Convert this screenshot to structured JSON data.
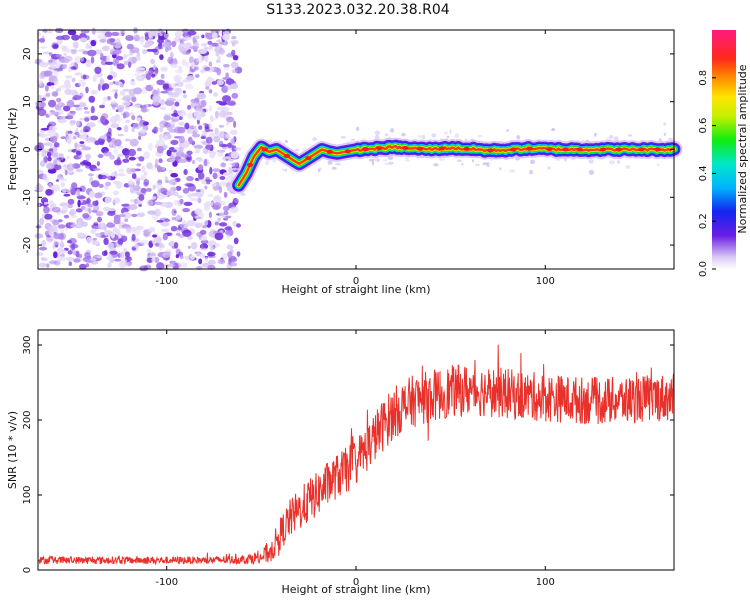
{
  "title": "S133.2023.032.20.38.R04",
  "chart_data": [
    {
      "type": "heatmap",
      "xlabel": "Height of straight line (km)",
      "ylabel": "Frequency (Hz)",
      "xlim": [
        -168,
        168
      ],
      "ylim": [
        -25,
        25
      ],
      "xticks": [
        -100,
        0,
        100
      ],
      "yticks": [
        -20,
        -10,
        0,
        10,
        20
      ],
      "noise_region_x": [
        -168,
        -62
      ],
      "signal_onset_x": -62,
      "ridge": {
        "x": [
          -62,
          -58,
          -54,
          -50,
          -46,
          -42,
          -38,
          -34,
          -30,
          -26,
          -22,
          -18,
          -14,
          -10,
          -6,
          -2,
          2,
          10,
          20,
          30,
          40,
          50,
          60,
          70,
          80,
          90,
          100,
          110,
          120,
          130,
          140,
          150,
          160,
          168
        ],
        "y": [
          -7.5,
          -5,
          -1.5,
          0.5,
          -0.5,
          0,
          -1,
          -2,
          -3,
          -2,
          -1,
          0,
          -0.5,
          -0.8,
          -0.5,
          -0.2,
          0,
          0.2,
          0.5,
          0.2,
          0.1,
          0.3,
          0.1,
          -0.2,
          -0.1,
          0.2,
          0.1,
          0,
          0,
          0,
          0,
          0,
          0,
          0
        ]
      },
      "colorbar": {
        "label": "Normalized spectral amplitude",
        "range": [
          0,
          1
        ],
        "ticks": [
          0.0,
          0.2,
          0.4,
          0.6,
          0.8
        ],
        "tick_labels": [
          "0.0",
          "0.2",
          "0.4",
          "0.6",
          "0.8"
        ]
      }
    },
    {
      "type": "line",
      "xlabel": "Height of straight line (km)",
      "ylabel": "SNR (10 * v/v)",
      "xlim": [
        -168,
        168
      ],
      "ylim": [
        0,
        320
      ],
      "xticks": [
        -100,
        0,
        100
      ],
      "yticks": [
        0,
        100,
        200,
        300
      ],
      "color": "#e8312b",
      "series": [
        {
          "name": "SNR",
          "x": [
            -168,
            -140,
            -110,
            -80,
            -60,
            -50,
            -45,
            -40,
            -35,
            -30,
            -25,
            -20,
            -15,
            -10,
            -5,
            0,
            5,
            10,
            15,
            20,
            30,
            40,
            50,
            60,
            70,
            80,
            90,
            100,
            110,
            120,
            130,
            140,
            150,
            160,
            168
          ],
          "y": [
            13,
            13,
            13,
            13,
            14,
            17,
            25,
            48,
            68,
            80,
            92,
            102,
            115,
            125,
            132,
            145,
            160,
            178,
            195,
            210,
            225,
            232,
            238,
            240,
            238,
            235,
            232,
            230,
            228,
            226,
            225,
            226,
            228,
            230,
            230
          ],
          "noise_amplitude": [
            5,
            5,
            5,
            5,
            6,
            10,
            16,
            22,
            26,
            28,
            30,
            30,
            30,
            30,
            32,
            32,
            32,
            34,
            35,
            35,
            35,
            35,
            35,
            35,
            34,
            34,
            33,
            33,
            32,
            32,
            32,
            32,
            32,
            32,
            32
          ]
        }
      ]
    }
  ]
}
